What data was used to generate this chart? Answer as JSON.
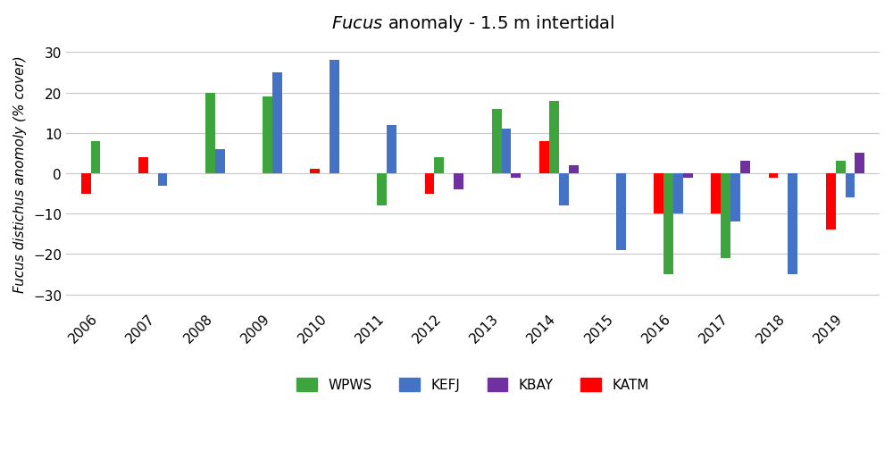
{
  "title": "$\\it{Fucus}$ anomaly - 1.5 m intertidal",
  "ylabel": "Fucus distichus anomoly (% cover)",
  "years": [
    2006,
    2007,
    2008,
    2009,
    2010,
    2011,
    2012,
    2013,
    2014,
    2015,
    2016,
    2017,
    2018,
    2019
  ],
  "series": [
    {
      "name": "WPWS",
      "color": "#3EA53E",
      "values": [
        8,
        null,
        20,
        19,
        null,
        -8,
        4,
        16,
        18,
        null,
        -25,
        -21,
        null,
        3
      ]
    },
    {
      "name": "KEFJ",
      "color": "#4472C4",
      "values": [
        null,
        -3,
        6,
        25,
        28,
        12,
        null,
        11,
        -8,
        -19,
        -10,
        -12,
        -25,
        -6
      ]
    },
    {
      "name": "KBAY",
      "color": "#7030A0",
      "values": [
        null,
        null,
        null,
        null,
        null,
        null,
        -4,
        -1,
        2,
        null,
        -1,
        3,
        null,
        5
      ]
    },
    {
      "name": "KATM",
      "color": "#FF0000",
      "values": [
        -5,
        4,
        null,
        null,
        1,
        null,
        -5,
        null,
        8,
        null,
        -10,
        -10,
        -1,
        -14
      ]
    }
  ],
  "ylim": [
    -33,
    33
  ],
  "yticks": [
    -30,
    -20,
    -10,
    0,
    10,
    20,
    30
  ],
  "bar_width": 0.17,
  "bar_gap": 0.0,
  "background_color": "#FFFFFF",
  "grid_color": "#C8C8C8",
  "title_fontsize": 14,
  "tick_fontsize": 11,
  "label_fontsize": 11
}
